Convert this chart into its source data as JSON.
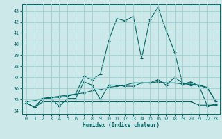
{
  "xlabel": "Humidex (Indice chaleur)",
  "bg_color": "#cce8e8",
  "grid_color": "#9ecece",
  "line_color": "#006868",
  "xlim": [
    -0.5,
    23.5
  ],
  "ylim": [
    33.7,
    43.6
  ],
  "yticks": [
    34,
    35,
    36,
    37,
    38,
    39,
    40,
    41,
    42,
    43
  ],
  "xticks": [
    0,
    1,
    2,
    3,
    4,
    5,
    6,
    7,
    8,
    9,
    10,
    11,
    12,
    13,
    14,
    15,
    16,
    17,
    18,
    19,
    20,
    21,
    22,
    23
  ],
  "line_main_x": [
    0,
    1,
    2,
    3,
    4,
    5,
    6,
    7,
    8,
    9,
    10,
    11,
    12,
    13,
    14,
    15,
    16,
    17,
    18,
    19,
    20,
    21,
    22,
    23
  ],
  "line_main_y": [
    34.7,
    34.3,
    35.1,
    35.2,
    35.2,
    35.3,
    35.5,
    37.1,
    36.8,
    37.3,
    40.3,
    42.3,
    42.1,
    42.5,
    38.7,
    42.2,
    43.3,
    41.2,
    39.3,
    36.4,
    36.6,
    36.2,
    34.4,
    34.6
  ],
  "line_mid_x": [
    0,
    1,
    2,
    3,
    4,
    5,
    6,
    7,
    8,
    9,
    10,
    11,
    12,
    13,
    14,
    15,
    16,
    17,
    18,
    19,
    20,
    21,
    22,
    23
  ],
  "line_mid_y": [
    34.7,
    34.3,
    35.1,
    35.1,
    34.4,
    35.1,
    35.1,
    36.6,
    36.3,
    35.0,
    36.3,
    36.3,
    36.2,
    36.2,
    36.5,
    36.5,
    36.8,
    36.3,
    37.0,
    36.5,
    36.3,
    36.3,
    36.1,
    34.8
  ],
  "line_low_x": [
    0,
    1,
    2,
    3,
    4,
    5,
    6,
    7,
    8,
    9,
    10,
    11,
    12,
    13,
    14,
    15,
    16,
    17,
    18,
    19,
    20,
    21,
    22,
    23
  ],
  "line_low_y": [
    34.7,
    34.3,
    34.8,
    34.8,
    34.8,
    34.8,
    34.8,
    34.8,
    34.8,
    34.8,
    34.8,
    34.8,
    34.8,
    34.8,
    34.8,
    34.8,
    34.8,
    34.8,
    34.8,
    34.8,
    34.8,
    34.5,
    34.5,
    34.5
  ],
  "line_reg_x": [
    0,
    1,
    2,
    3,
    4,
    5,
    6,
    7,
    8,
    9,
    10,
    11,
    12,
    13,
    14,
    15,
    16,
    17,
    18,
    19,
    20,
    21,
    22,
    23
  ],
  "line_reg_y": [
    34.8,
    34.9,
    35.1,
    35.2,
    35.3,
    35.4,
    35.5,
    35.6,
    35.8,
    35.9,
    36.1,
    36.2,
    36.3,
    36.5,
    36.5,
    36.5,
    36.6,
    36.5,
    36.5,
    36.4,
    36.4,
    36.3,
    36.0,
    34.9
  ]
}
